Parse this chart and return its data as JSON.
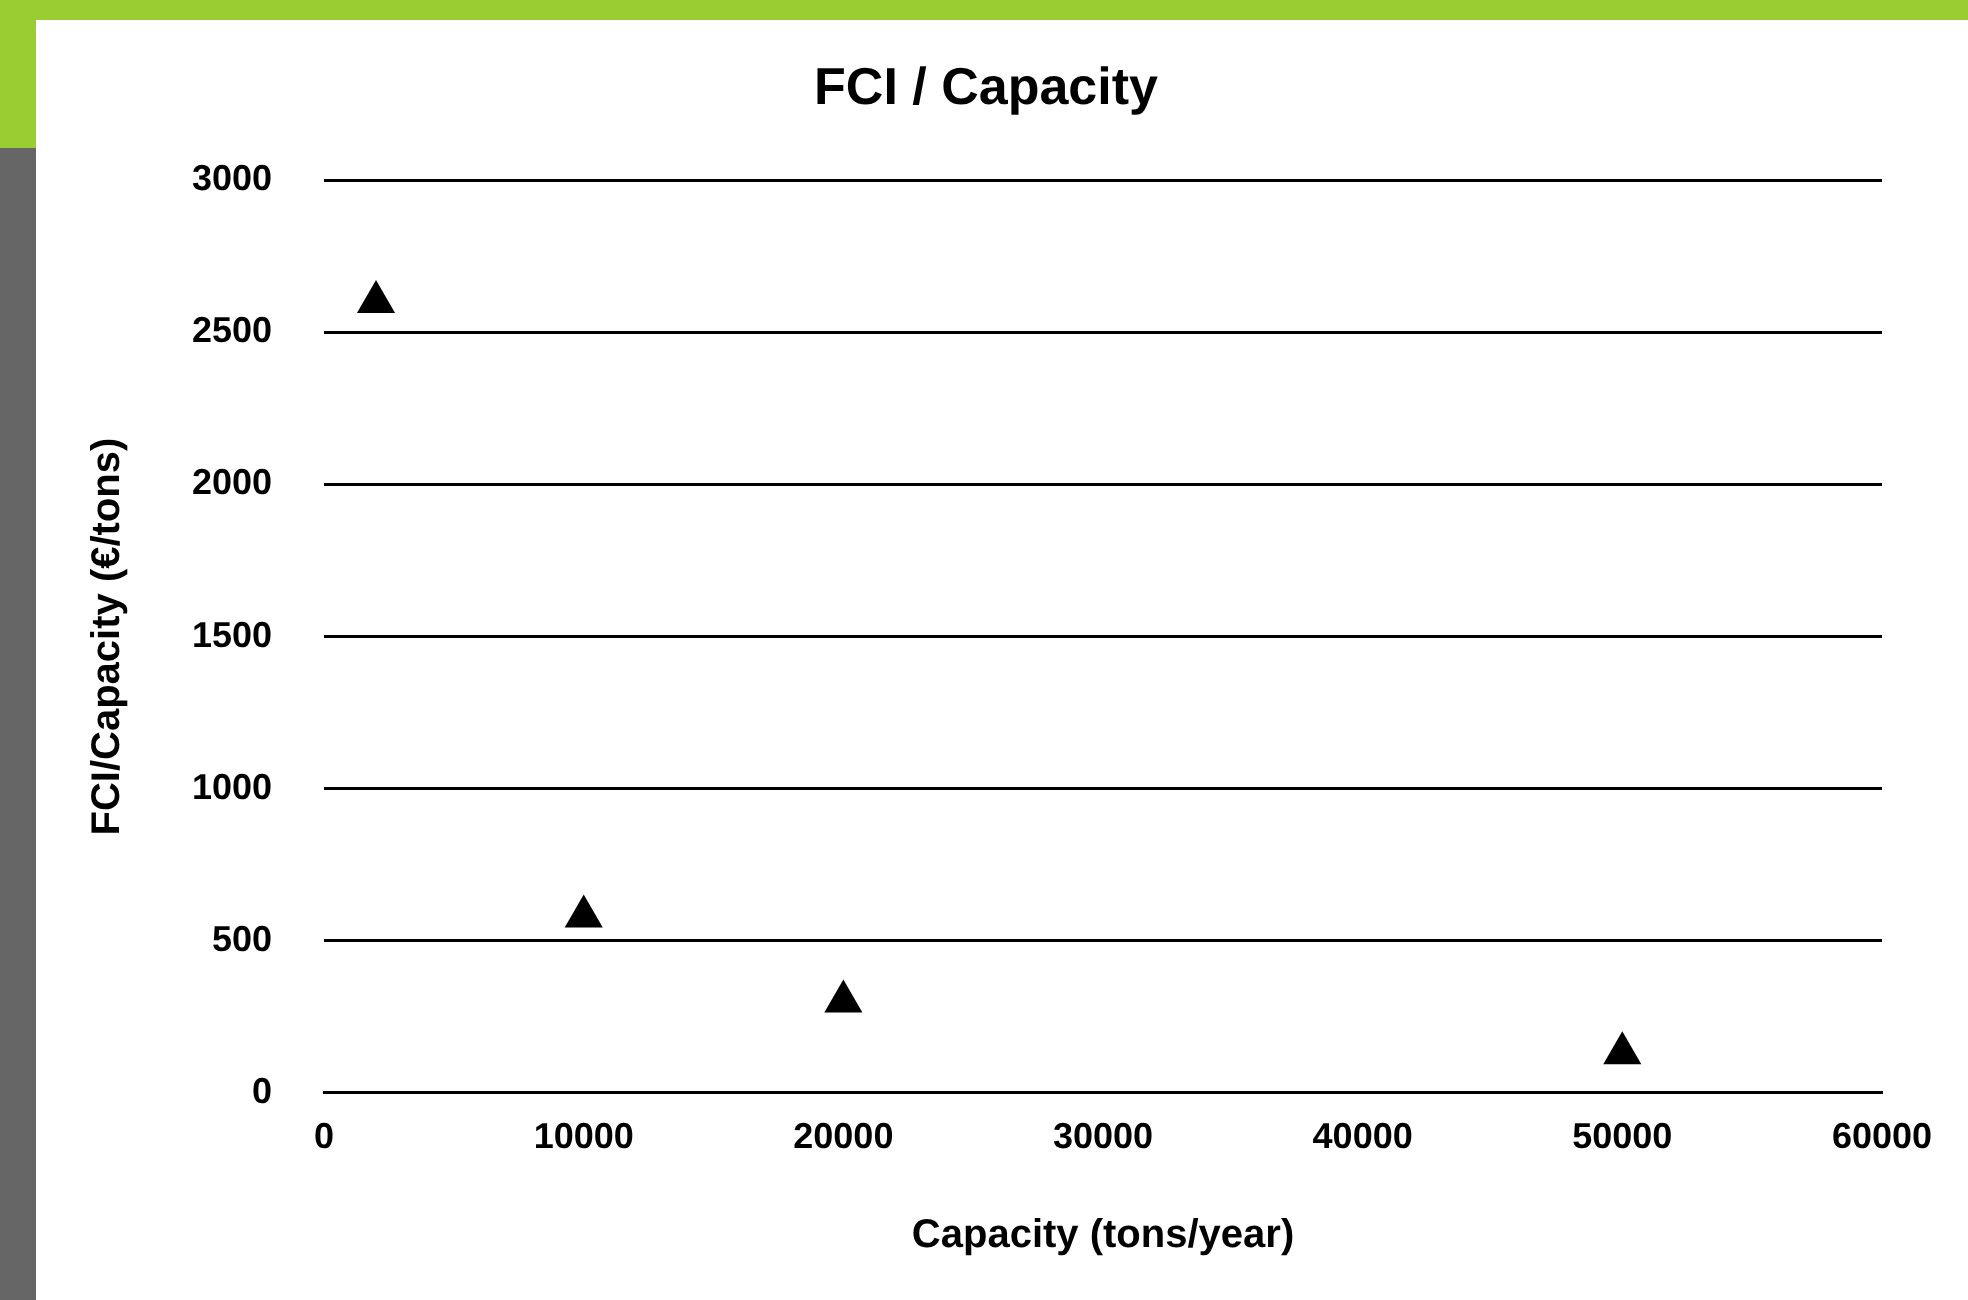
{
  "chart_data": {
    "type": "scatter",
    "title": "FCI / Capacity",
    "xlabel": "Capacity (tons/year)",
    "ylabel": "FCI/Capacity (€/tons)",
    "x": [
      2000,
      10000,
      20000,
      50000
    ],
    "series": [
      {
        "color": "#000000",
        "values": [
          2600,
          580,
          300,
          130
        ]
      }
    ],
    "xlim": [
      0,
      60000
    ],
    "xticks": [
      0,
      10000,
      20000,
      30000,
      40000,
      50000,
      60000
    ],
    "ylim": [
      0,
      3000
    ],
    "yticks": [
      0,
      500,
      1000,
      1500,
      2000,
      2500,
      3000
    ],
    "grid": "y",
    "legend": false,
    "marker": "triangle"
  }
}
